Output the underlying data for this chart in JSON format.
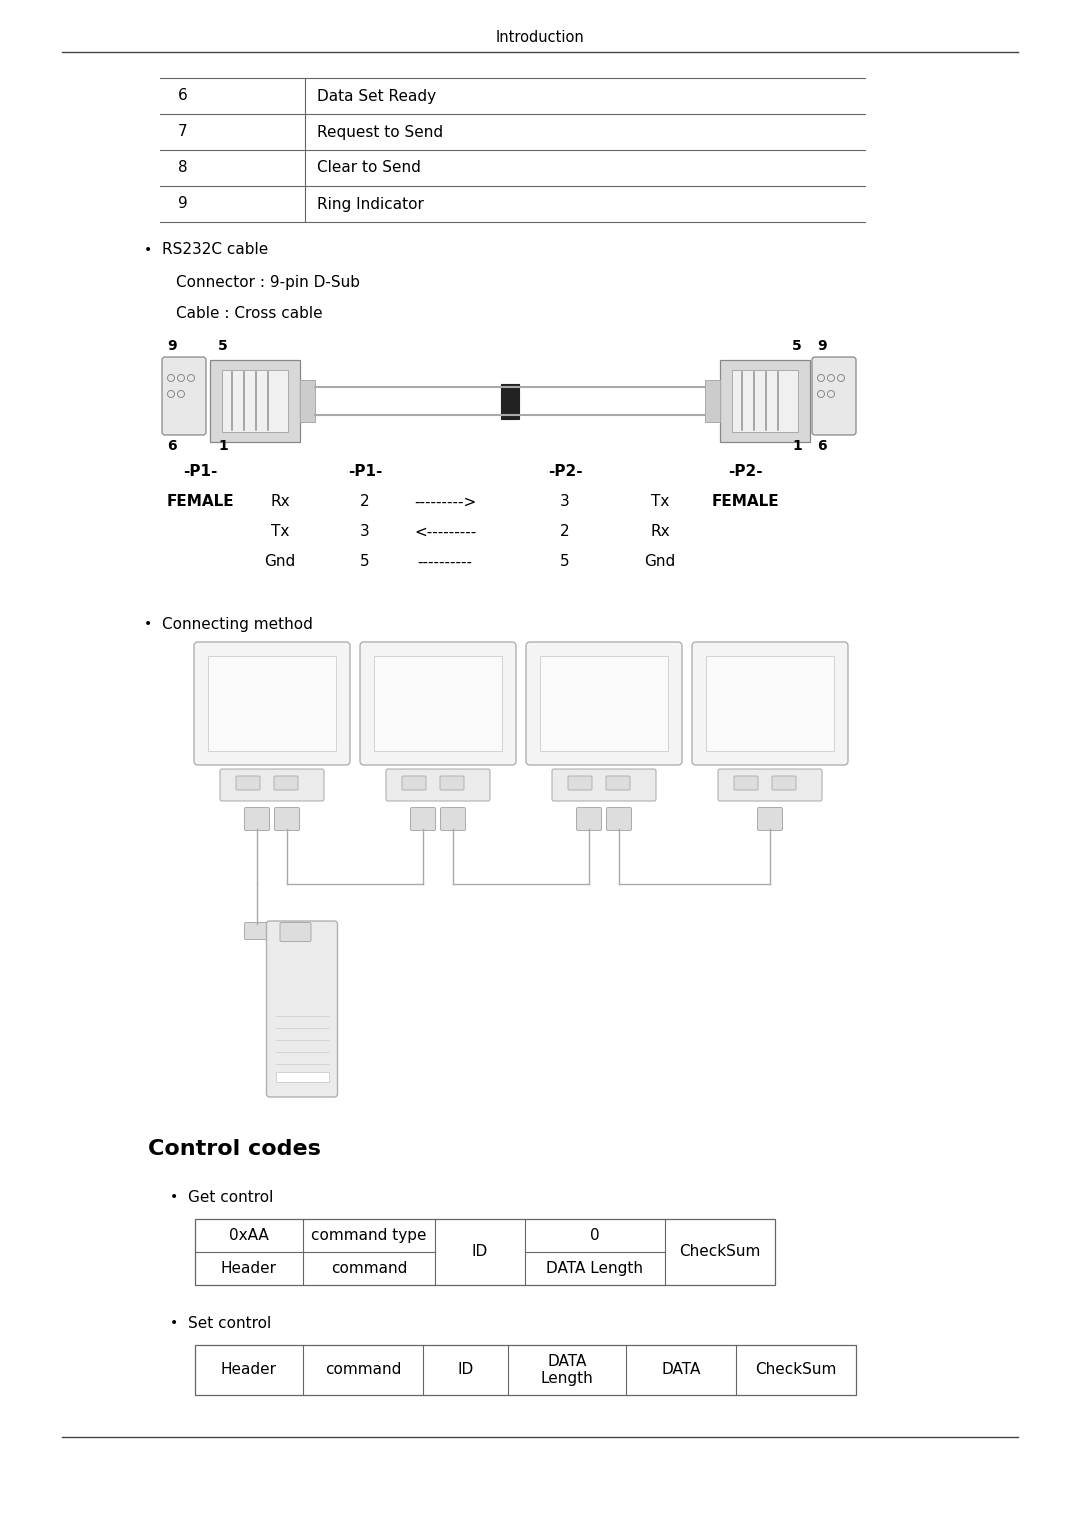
{
  "page_title": "Introduction",
  "bg_color": "#ffffff",
  "text_color": "#000000",
  "table_rows": [
    [
      "6",
      "Data Set Ready"
    ],
    [
      "7",
      "Request to Send"
    ],
    [
      "8",
      "Clear to Send"
    ],
    [
      "9",
      "Ring Indicator"
    ]
  ],
  "bullet1": "RS232C cable",
  "connector_text": "Connector : 9-pin D-Sub",
  "cable_text": "Cable : Cross cable",
  "pin_table": [
    [
      "-P1-",
      "",
      "-P1-",
      "",
      "-P2-",
      "",
      "-P2-"
    ],
    [
      "FEMALE",
      "Rx",
      "2",
      "--------->",
      "3",
      "Tx",
      "FEMALE"
    ],
    [
      "",
      "Tx",
      "3",
      "<---------",
      "2",
      "Rx",
      ""
    ],
    [
      "",
      "Gnd",
      "5",
      "----------",
      "5",
      "Gnd",
      ""
    ]
  ],
  "bullet2": "Connecting method",
  "section_title": "Control codes",
  "get_control_label": "Get control",
  "get_table_row1": [
    "Header",
    "command",
    "ID",
    "DATA Length",
    "CheckSum"
  ],
  "get_table_row2": [
    "0xAA",
    "command type",
    "",
    "0",
    ""
  ],
  "set_control_label": "Set control",
  "set_table_row1": [
    "Header",
    "command",
    "ID",
    "DATA\nLength",
    "DATA",
    "CheckSum"
  ]
}
